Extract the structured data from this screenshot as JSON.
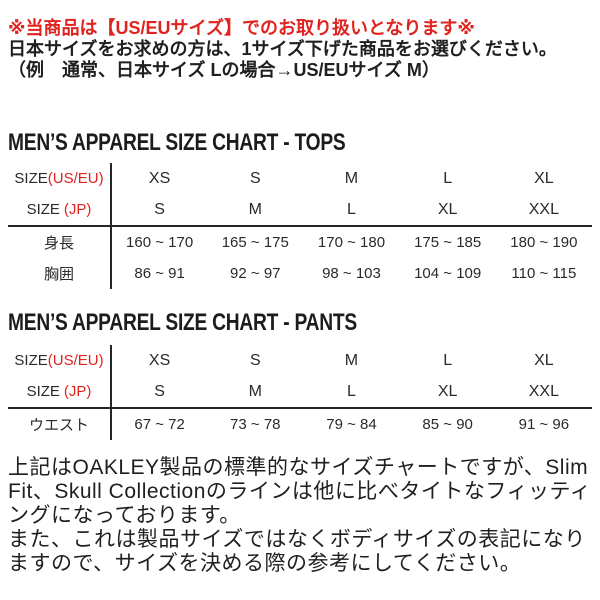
{
  "colors": {
    "accent_red": "#e0231e",
    "heading": "#1c1c1c",
    "rule": "#262626",
    "text": "#1f1f1f"
  },
  "notice": {
    "line1": "※当商品は【US/EUサイズ】でのお取り扱いとなります※",
    "line2": "日本サイズをお求めの方は、1サイズ下げた商品をお選びください。",
    "line3": "（例　通常、日本サイズ Lの場合→US/EUサイズ M）"
  },
  "tops": {
    "title": "MEN’S APPAREL SIZE CHART - TOPS",
    "size_useu": {
      "label": "SIZE",
      "suffix": "(US/EU)",
      "values": [
        "XS",
        "S",
        "M",
        "L",
        "XL"
      ]
    },
    "size_jp": {
      "label": "SIZE",
      "suffix": "(JP)",
      "values": [
        "S",
        "M",
        "L",
        "XL",
        "XXL"
      ]
    },
    "height": {
      "label": "身長",
      "values": [
        "160 ~ 170",
        "165 ~ 175",
        "170 ~ 180",
        "175 ~ 185",
        "180 ~ 190"
      ]
    },
    "chest": {
      "label": "胸囲",
      "values": [
        "86 ~ 91",
        "92 ~ 97",
        "98 ~ 103",
        "104 ~ 109",
        "110 ~ 115"
      ]
    }
  },
  "pants": {
    "title": "MEN’S APPAREL SIZE CHART - PANTS",
    "size_useu": {
      "label": "SIZE",
      "suffix": "(US/EU)",
      "values": [
        "XS",
        "S",
        "M",
        "L",
        "XL"
      ]
    },
    "size_jp": {
      "label": "SIZE",
      "suffix": "(JP)",
      "values": [
        "S",
        "M",
        "L",
        "XL",
        "XXL"
      ]
    },
    "waist": {
      "label": "ウエスト",
      "values": [
        "67 ~ 72",
        "73 ~ 78",
        "79 ~ 84",
        "85 ~ 90",
        "91 ~ 96"
      ]
    }
  },
  "footer": {
    "para1": "上記はOAKLEY製品の標準的なサイズチャートですが、Slim Fit、Skull Collectionのラインは他に比べタイトなフィッティングになっております。",
    "para2": "また、これは製品サイズではなくボディサイズの表記になりますので、サイズを決める際の参考にしてください。"
  }
}
